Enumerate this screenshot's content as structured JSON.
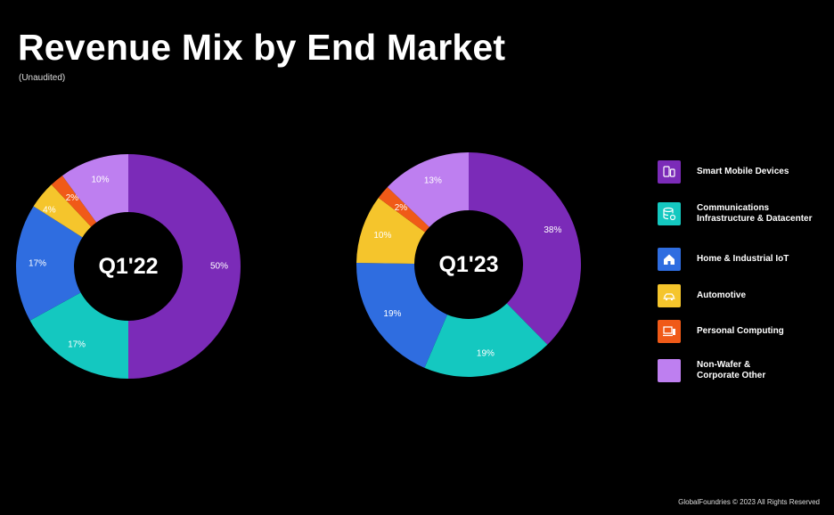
{
  "title": "Revenue Mix by End Market",
  "subtitle": "(Unaudited)",
  "footer": "GlobalFoundries © 2023 All Rights Reserved",
  "legend": [
    {
      "label": "Smart Mobile Devices",
      "color": "#7b2bb8",
      "icon": "smartphone-icon"
    },
    {
      "label": "Communications\nInfrastructure & Datacenter",
      "color": "#14c8c0",
      "icon": "server-icon"
    },
    {
      "label": "Home & Industrial IoT",
      "color": "#2f6de0",
      "icon": "home-icon"
    },
    {
      "label": "Automotive",
      "color": "#f5c52c",
      "icon": "car-icon"
    },
    {
      "label": "Personal Computing",
      "color": "#f05a18",
      "icon": "laptop-icon"
    },
    {
      "label": "Non-Wafer &\nCorporate Other",
      "color": "#be7ff0",
      "icon": "box-icon"
    }
  ],
  "chart_data": [
    {
      "type": "pie",
      "center_label": "Q1'22",
      "categories": [
        "Smart Mobile Devices",
        "Communications Infrastructure & Datacenter",
        "Home & Industrial IoT",
        "Automotive",
        "Personal Computing",
        "Non-Wafer & Corporate Other"
      ],
      "values": [
        50,
        17,
        17,
        4,
        2,
        10
      ],
      "labels": [
        "50%",
        "17%",
        "17%",
        "4%",
        "2%",
        "10%"
      ],
      "colors": [
        "#7b2bb8",
        "#14c8c0",
        "#2f6de0",
        "#f5c52c",
        "#f05a18",
        "#be7ff0"
      ],
      "legend_position": "right"
    },
    {
      "type": "pie",
      "center_label": "Q1'23",
      "categories": [
        "Smart Mobile Devices",
        "Communications Infrastructure & Datacenter",
        "Home & Industrial IoT",
        "Automotive",
        "Personal Computing",
        "Non-Wafer & Corporate Other"
      ],
      "values": [
        38,
        19,
        19,
        10,
        2,
        13
      ],
      "labels": [
        "38%",
        "19%",
        "19%",
        "10%",
        "2%",
        "13%"
      ],
      "colors": [
        "#7b2bb8",
        "#14c8c0",
        "#2f6de0",
        "#f5c52c",
        "#f05a18",
        "#be7ff0"
      ],
      "legend_position": "right"
    }
  ]
}
